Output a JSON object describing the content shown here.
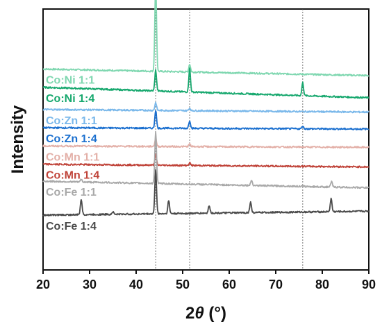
{
  "chart_data": {
    "type": "line",
    "title": "",
    "xlabel_symbol": "2",
    "xlabel_var": "θ",
    "xlabel_unit": " (°)",
    "ylabel": "Intensity",
    "xlim": [
      20,
      90
    ],
    "xticks": [
      20,
      30,
      40,
      50,
      60,
      70,
      80,
      90
    ],
    "yticks": false,
    "y_units": "arbitrary (stacked, normalized offset)",
    "reference_lines_x": [
      44.2,
      51.5,
      75.8
    ],
    "series": [
      {
        "name": "Co:Ni 1:1",
        "color": "#7fd7b0",
        "baseline_start": 0.77,
        "baseline_end": 0.745,
        "peaks": [
          [
            44.2,
            0.34
          ],
          [
            51.5,
            0.03
          ]
        ]
      },
      {
        "name": "Co:Ni 1:4",
        "color": "#17a86e",
        "baseline_start": 0.7,
        "baseline_end": 0.66,
        "peaks": [
          [
            44.2,
            0.08
          ],
          [
            51.5,
            0.09
          ],
          [
            75.8,
            0.05
          ]
        ]
      },
      {
        "name": "Co:Zn 1:1",
        "color": "#7ab8ea",
        "baseline_start": 0.615,
        "baseline_end": 0.605,
        "peaks": [
          [
            44.2,
            0.03
          ],
          [
            51.5,
            0.01
          ]
        ]
      },
      {
        "name": "Co:Zn 1:4",
        "color": "#1a6fcf",
        "baseline_start": 0.545,
        "baseline_end": 0.54,
        "peaks": [
          [
            44.2,
            0.07
          ],
          [
            51.5,
            0.03
          ],
          [
            75.8,
            0.01
          ]
        ]
      },
      {
        "name": "Co:Mn 1:1",
        "color": "#e3b0a8",
        "baseline_start": 0.475,
        "baseline_end": 0.47,
        "peaks": [
          [
            44.2,
            0.03
          ],
          [
            51.5,
            0.01
          ]
        ]
      },
      {
        "name": "Co:Mn 1:4",
        "color": "#c0443a",
        "baseline_start": 0.405,
        "baseline_end": 0.395,
        "peaks": [
          [
            44.2,
            0.04
          ],
          [
            51.5,
            0.01
          ]
        ]
      },
      {
        "name": "Co:Fe 1:1",
        "color": "#a9a9a9",
        "baseline_start": 0.34,
        "baseline_end": 0.315,
        "peaks": [
          [
            28.2,
            0.01
          ],
          [
            44.2,
            0.2
          ],
          [
            64.8,
            0.02
          ],
          [
            82.0,
            0.02
          ]
        ]
      },
      {
        "name": "Co:Fe 1:4",
        "color": "#4a4a4a",
        "baseline_start": 0.21,
        "baseline_end": 0.225,
        "peaks": [
          [
            28.2,
            0.06
          ],
          [
            35.0,
            0.01
          ],
          [
            44.2,
            0.17
          ],
          [
            47.0,
            0.05
          ],
          [
            55.7,
            0.03
          ],
          [
            64.6,
            0.04
          ],
          [
            81.9,
            0.05
          ]
        ]
      }
    ]
  }
}
